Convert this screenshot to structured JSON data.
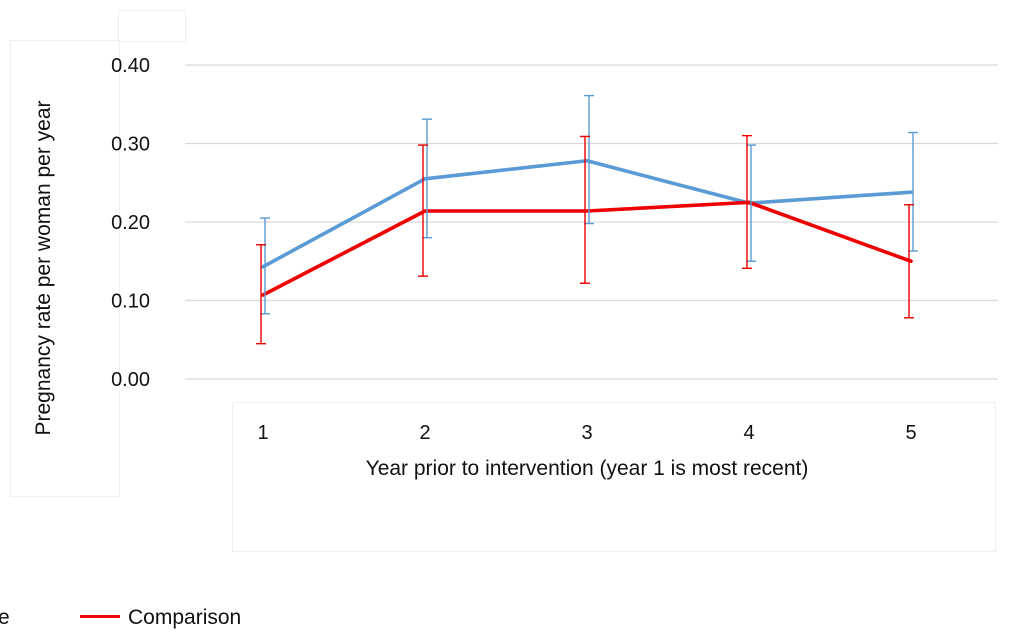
{
  "chart_data": {
    "type": "line",
    "title": "",
    "xlabel": "Year prior to intervention (year 1 is most recent)",
    "ylabel": "Pregnancy rate per woman per year",
    "categories": [
      "1",
      "2",
      "3",
      "4",
      "5"
    ],
    "ylim": [
      0,
      0.4
    ],
    "yticks": [
      "0.00",
      "0.10",
      "0.20",
      "0.30",
      "0.40"
    ],
    "grid": true,
    "legend_position": "bottom",
    "series": [
      {
        "name": "",
        "color": "#5b9bd5",
        "values": [
          0.143,
          0.255,
          0.278,
          0.224,
          0.238
        ],
        "err_low": [
          0.083,
          0.18,
          0.198,
          0.15,
          0.163
        ],
        "err_high": [
          0.205,
          0.331,
          0.361,
          0.298,
          0.314
        ]
      },
      {
        "name": "Comparison",
        "color": "#ee0000",
        "values": [
          0.107,
          0.214,
          0.214,
          0.225,
          0.15
        ],
        "err_low": [
          0.045,
          0.131,
          0.122,
          0.141,
          0.078
        ],
        "err_high": [
          0.171,
          0.298,
          0.309,
          0.31,
          0.222
        ]
      }
    ]
  },
  "legend": {
    "items": [
      {
        "label": "e",
        "color": "#5b9bd5"
      },
      {
        "label": "Comparison",
        "color": "#ee0000"
      }
    ]
  }
}
